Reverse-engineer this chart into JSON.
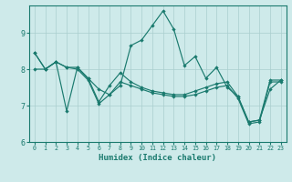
{
  "xlabel": "Humidex (Indice chaleur)",
  "xlim": [
    -0.5,
    23.5
  ],
  "ylim": [
    6.0,
    9.75
  ],
  "yticks": [
    6,
    7,
    8,
    9
  ],
  "xticks": [
    0,
    1,
    2,
    3,
    4,
    5,
    6,
    7,
    8,
    9,
    10,
    11,
    12,
    13,
    14,
    15,
    16,
    17,
    18,
    19,
    20,
    21,
    22,
    23
  ],
  "bg_color": "#ceeaea",
  "line_color": "#1a7a6e",
  "grid_color": "#aacece",
  "series1": [
    8.45,
    8.0,
    8.2,
    6.85,
    8.05,
    7.75,
    7.45,
    7.3,
    7.55,
    8.65,
    8.8,
    9.2,
    9.6,
    9.1,
    8.1,
    8.35,
    7.75,
    8.05,
    7.5,
    7.25,
    6.55,
    6.6,
    7.45,
    7.7
  ],
  "series2": [
    8.45,
    8.0,
    8.2,
    8.05,
    8.05,
    7.75,
    7.1,
    7.55,
    7.9,
    7.65,
    7.5,
    7.4,
    7.35,
    7.3,
    7.3,
    7.4,
    7.5,
    7.6,
    7.65,
    7.25,
    6.55,
    6.6,
    7.7,
    7.7
  ],
  "series3": [
    8.0,
    8.0,
    8.2,
    8.05,
    8.0,
    7.7,
    7.05,
    7.3,
    7.65,
    7.55,
    7.45,
    7.35,
    7.3,
    7.25,
    7.25,
    7.3,
    7.4,
    7.5,
    7.55,
    7.2,
    6.5,
    6.55,
    7.65,
    7.65
  ]
}
